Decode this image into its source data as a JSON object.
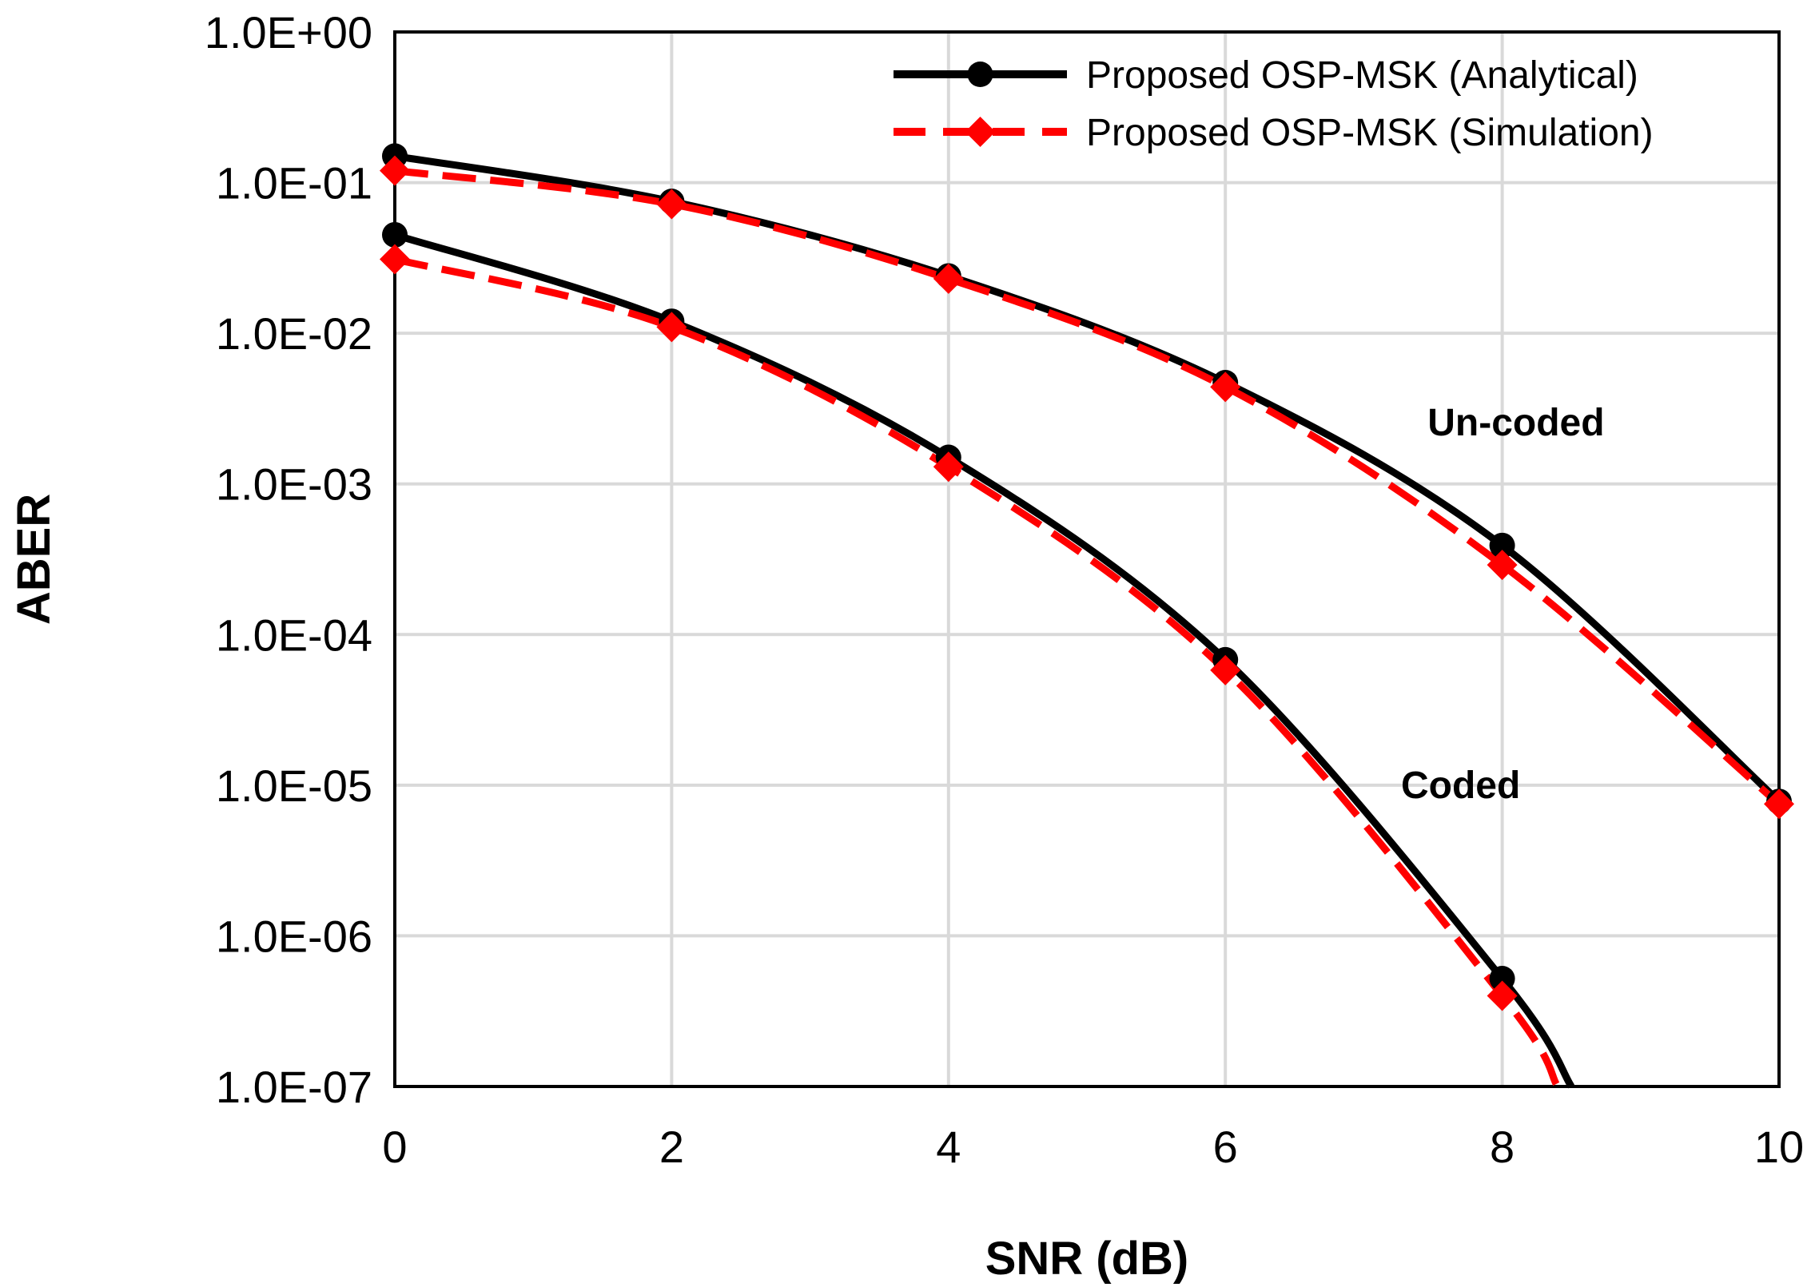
{
  "chart_data": {
    "type": "line",
    "title": "",
    "xlabel": "SNR (dB)",
    "ylabel": "ABER",
    "xlim": [
      0,
      10
    ],
    "ylim": [
      1e-07,
      1
    ],
    "yscale": "log",
    "grid": true,
    "legend_position": "top-right",
    "x_ticks": [
      0,
      2,
      4,
      6,
      8,
      10
    ],
    "x_tick_labels": [
      "0",
      "2",
      "4",
      "6",
      "8",
      "10"
    ],
    "y_ticks": [
      1,
      0.1,
      0.01,
      0.001,
      0.0001,
      1e-05,
      1e-06,
      1e-07
    ],
    "y_tick_labels": [
      "1.0E+00",
      "1.0E-01",
      "1.0E-02",
      "1.0E-03",
      "1.0E-04",
      "1.0E-05",
      "1.0E-06",
      "1.0E-07"
    ],
    "legend": [
      {
        "label": "Proposed OSP-MSK (Analytical)",
        "style": "solid",
        "marker": "circle",
        "color": "#000000"
      },
      {
        "label": "Proposed OSP-MSK (Simulation)",
        "style": "dashed",
        "marker": "diamond",
        "color": "#ff0000"
      }
    ],
    "series": [
      {
        "name": "Un-coded Analytical",
        "style": "solid",
        "marker": "circle",
        "color": "#000000",
        "x": [
          0,
          2,
          4,
          6,
          8,
          10
        ],
        "y": [
          0.15,
          0.075,
          0.024,
          0.0047,
          0.00039,
          7.8e-06
        ]
      },
      {
        "name": "Un-coded Simulation",
        "style": "dashed",
        "marker": "diamond",
        "color": "#ff0000",
        "x": [
          0,
          2,
          4,
          6,
          8,
          10
        ],
        "y": [
          0.12,
          0.072,
          0.023,
          0.0044,
          0.00029,
          7.5e-06
        ]
      },
      {
        "name": "Coded Analytical",
        "style": "solid",
        "marker": "circle",
        "color": "#000000",
        "x": [
          0,
          2,
          4,
          6,
          8,
          8.5
        ],
        "y": [
          0.045,
          0.012,
          0.0015,
          6.8e-05,
          5.2e-07,
          1e-07
        ],
        "marker_count": 5
      },
      {
        "name": "Coded Simulation",
        "style": "dashed",
        "marker": "diamond",
        "color": "#ff0000",
        "x": [
          0,
          2,
          4,
          6,
          8,
          8.4
        ],
        "y": [
          0.031,
          0.011,
          0.0013,
          5.8e-05,
          4e-07,
          1e-07
        ],
        "marker_count": 5
      }
    ],
    "annotations": [
      {
        "text": "Un-coded",
        "x": 8.1,
        "y": 0.0021
      },
      {
        "text": "Coded",
        "x": 7.7,
        "y": 8.2e-06
      }
    ]
  }
}
